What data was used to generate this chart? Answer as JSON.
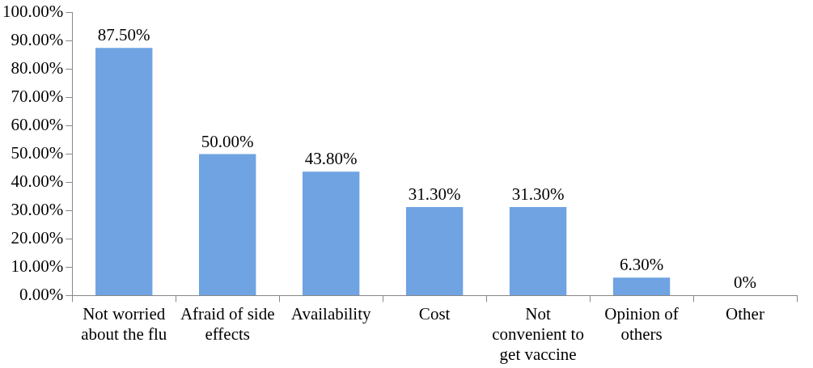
{
  "chart_data": {
    "type": "bar",
    "categories": [
      "Not worried about the flu",
      "Afraid of side effects",
      "Availability",
      "Cost",
      "Not convenient to get vaccine",
      "Opinion of others",
      "Other"
    ],
    "values": [
      87.5,
      50.0,
      43.8,
      31.3,
      31.3,
      6.3,
      0
    ],
    "value_labels": [
      "87.50%",
      "50.00%",
      "43.80%",
      "31.30%",
      "31.30%",
      "6.30%",
      "0%"
    ],
    "color": "#6fa3e2",
    "ylim": [
      0,
      100
    ],
    "yticks": [
      {
        "value": 0,
        "label": "0.00%"
      },
      {
        "value": 10,
        "label": "10.00%"
      },
      {
        "value": 20,
        "label": "20.00%"
      },
      {
        "value": 30,
        "label": "30.00%"
      },
      {
        "value": 40,
        "label": "40.00%"
      },
      {
        "value": 50,
        "label": "50.00%"
      },
      {
        "value": 60,
        "label": "60.00%"
      },
      {
        "value": 70,
        "label": "70.00%"
      },
      {
        "value": 80,
        "label": "80.00%"
      },
      {
        "value": 90,
        "label": "90.00%"
      },
      {
        "value": 100,
        "label": "100.00%"
      }
    ],
    "grid": false,
    "legend": false
  }
}
